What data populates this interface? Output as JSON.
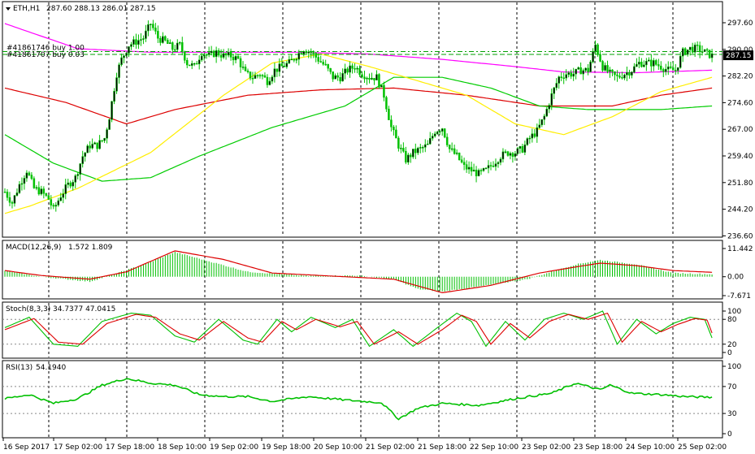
{
  "chart_data": [
    {
      "type": "candlestick",
      "title": "ETH,H1",
      "ohlc_label": "287.60 288.13 286.01 287.15",
      "ylim": [
        236.6,
        301.0
      ],
      "y_ticks": [
        "297.60",
        "290.00",
        "282.20",
        "274.60",
        "267.00",
        "259.40",
        "251.80",
        "244.20",
        "236.60"
      ],
      "current_price": "287.15",
      "orders": [
        {
          "label": "#41861746 buy 1.00",
          "price": 288.2
        },
        {
          "label": "#41861707 buy 0.03",
          "price": 287.4
        }
      ],
      "x_tick_labels": [
        "16 Sep 2017",
        "17 Sep 02:00",
        "17 Sep 18:00",
        "18 Sep 10:00",
        "19 Sep 02:00",
        "19 Sep 18:00",
        "20 Sep 10:00",
        "21 Sep 02:00",
        "21 Sep 18:00",
        "22 Sep 10:00",
        "23 Sep 02:00",
        "23 Sep 18:00",
        "24 Sep 10:00",
        "25 Sep 02:00"
      ],
      "close_anchors": [
        [
          0,
          249
        ],
        [
          3,
          246
        ],
        [
          6,
          251
        ],
        [
          9,
          255
        ],
        [
          12,
          250
        ],
        [
          15,
          249
        ],
        [
          18,
          247
        ],
        [
          20,
          244
        ],
        [
          23,
          248
        ],
        [
          26,
          251
        ],
        [
          29,
          253
        ],
        [
          32,
          259
        ],
        [
          35,
          262
        ],
        [
          38,
          262
        ],
        [
          41,
          264
        ],
        [
          43,
          270
        ],
        [
          46,
          282
        ],
        [
          48,
          286
        ],
        [
          51,
          290
        ],
        [
          54,
          291
        ],
        [
          57,
          292
        ],
        [
          60,
          296
        ],
        [
          63,
          292
        ],
        [
          66,
          291
        ],
        [
          69,
          289
        ],
        [
          72,
          290
        ],
        [
          75,
          285
        ],
        [
          78,
          284
        ],
        [
          81,
          288
        ],
        [
          84,
          287
        ],
        [
          87,
          288
        ],
        [
          90,
          287
        ],
        [
          93,
          287
        ],
        [
          96,
          286
        ],
        [
          99,
          282
        ],
        [
          102,
          281
        ],
        [
          105,
          282
        ],
        [
          108,
          280
        ],
        [
          111,
          283
        ],
        [
          114,
          284
        ],
        [
          117,
          285
        ],
        [
          120,
          287
        ],
        [
          123,
          289
        ],
        [
          126,
          288
        ],
        [
          129,
          286
        ],
        [
          132,
          284
        ],
        [
          135,
          281
        ],
        [
          138,
          281
        ],
        [
          141,
          283
        ],
        [
          144,
          284
        ],
        [
          147,
          282
        ],
        [
          150,
          281
        ],
        [
          153,
          281
        ],
        [
          156,
          276
        ],
        [
          159,
          267
        ],
        [
          162,
          262
        ],
        [
          165,
          258
        ],
        [
          168,
          260
        ],
        [
          171,
          261
        ],
        [
          174,
          262
        ],
        [
          177,
          266
        ],
        [
          180,
          267
        ],
        [
          183,
          261
        ],
        [
          186,
          259
        ],
        [
          189,
          256
        ],
        [
          192,
          255
        ],
        [
          195,
          254
        ],
        [
          198,
          255
        ],
        [
          201,
          257
        ],
        [
          204,
          259
        ],
        [
          207,
          260
        ],
        [
          210,
          260
        ],
        [
          213,
          261
        ],
        [
          216,
          264
        ],
        [
          219,
          266
        ],
        [
          222,
          270
        ],
        [
          225,
          276
        ],
        [
          228,
          281
        ],
        [
          231,
          282
        ],
        [
          234,
          282
        ],
        [
          237,
          283
        ],
        [
          240,
          283
        ],
        [
          243,
          290
        ],
        [
          246,
          284
        ],
        [
          249,
          282
        ],
        [
          252,
          281
        ],
        [
          255,
          282
        ],
        [
          258,
          283
        ],
        [
          261,
          285
        ],
        [
          264,
          285
        ],
        [
          267,
          285
        ],
        [
          270,
          284
        ],
        [
          273,
          283
        ],
        [
          276,
          283
        ],
        [
          279,
          288
        ],
        [
          282,
          289
        ],
        [
          285,
          289
        ],
        [
          288,
          288
        ],
        [
          291,
          287
        ]
      ],
      "moving_averages": [
        {
          "name": "MA-magenta",
          "color": "#ff00ff",
          "anchors": [
            [
              0,
              296
            ],
            [
              30,
              289
            ],
            [
              60,
              288
            ],
            [
              90,
              288
            ],
            [
              120,
              288
            ],
            [
              150,
              287.5
            ],
            [
              180,
              286
            ],
            [
              210,
              284
            ],
            [
              230,
              282.5
            ],
            [
              260,
              282.3
            ],
            [
              291,
              283
            ]
          ]
        },
        {
          "name": "MA-red",
          "color": "#dd0000",
          "anchors": [
            [
              0,
              278
            ],
            [
              25,
              274
            ],
            [
              50,
              268
            ],
            [
              70,
              272
            ],
            [
              100,
              276
            ],
            [
              130,
              277.5
            ],
            [
              160,
              278
            ],
            [
              190,
              276
            ],
            [
              220,
              273
            ],
            [
              250,
              273
            ],
            [
              270,
              276
            ],
            [
              291,
              278
            ]
          ]
        },
        {
          "name": "MA-green",
          "color": "#00cc00",
          "anchors": [
            [
              0,
              265
            ],
            [
              20,
              257
            ],
            [
              40,
              252
            ],
            [
              60,
              253
            ],
            [
              80,
              259
            ],
            [
              110,
              267
            ],
            [
              140,
              273
            ],
            [
              160,
              281
            ],
            [
              180,
              281
            ],
            [
              200,
              278
            ],
            [
              220,
              273
            ],
            [
              240,
              272
            ],
            [
              270,
              272
            ],
            [
              291,
              273
            ]
          ]
        },
        {
          "name": "MA-yellow",
          "color": "#ffee00",
          "anchors": [
            [
              0,
              243
            ],
            [
              10,
              245
            ],
            [
              30,
              250
            ],
            [
              60,
              260
            ],
            [
              90,
              276
            ],
            [
              110,
              285
            ],
            [
              130,
              287.5
            ],
            [
              150,
              284
            ],
            [
              170,
              280
            ],
            [
              190,
              276
            ],
            [
              210,
              268
            ],
            [
              230,
              265
            ],
            [
              250,
              270
            ],
            [
              270,
              277
            ],
            [
              291,
              281
            ]
          ]
        }
      ]
    },
    {
      "type": "macd",
      "label": "MACD(12,26,9)",
      "values_label": "1.572 1.809",
      "ylim": [
        -7.671,
        11.442
      ],
      "y_ticks": [
        "11.442",
        "0.00",
        "-7.671"
      ],
      "hist_anchors": [
        [
          0,
          2.5
        ],
        [
          15,
          0
        ],
        [
          35,
          -2
        ],
        [
          45,
          1
        ],
        [
          60,
          6
        ],
        [
          70,
          10
        ],
        [
          85,
          6
        ],
        [
          100,
          2
        ],
        [
          125,
          0.3
        ],
        [
          145,
          0.5
        ],
        [
          160,
          -1
        ],
        [
          170,
          -5
        ],
        [
          180,
          -6
        ],
        [
          195,
          -4
        ],
        [
          215,
          -1
        ],
        [
          235,
          5
        ],
        [
          245,
          6.8
        ],
        [
          260,
          5
        ],
        [
          275,
          1.5
        ],
        [
          291,
          1
        ]
      ],
      "signal_anchors": [
        [
          0,
          2.5
        ],
        [
          15,
          0.5
        ],
        [
          35,
          -1
        ],
        [
          50,
          2
        ],
        [
          70,
          10.5
        ],
        [
          90,
          7
        ],
        [
          110,
          1.5
        ],
        [
          130,
          0.5
        ],
        [
          160,
          -1
        ],
        [
          180,
          -6.5
        ],
        [
          200,
          -3.5
        ],
        [
          220,
          1.5
        ],
        [
          235,
          4
        ],
        [
          245,
          5.5
        ],
        [
          260,
          4.5
        ],
        [
          275,
          2.5
        ],
        [
          291,
          1.8
        ]
      ]
    },
    {
      "type": "stochastic",
      "label": "Stoch(8,3,3)",
      "values_label": "34.7377 47.0415",
      "ylim": [
        0,
        100
      ],
      "y_ticks": [
        "100",
        "80",
        "20",
        "0"
      ],
      "k_anchors": [
        [
          0,
          60
        ],
        [
          10,
          85
        ],
        [
          20,
          20
        ],
        [
          30,
          15
        ],
        [
          40,
          75
        ],
        [
          52,
          95
        ],
        [
          60,
          90
        ],
        [
          70,
          40
        ],
        [
          78,
          25
        ],
        [
          88,
          80
        ],
        [
          98,
          30
        ],
        [
          104,
          20
        ],
        [
          112,
          80
        ],
        [
          118,
          50
        ],
        [
          126,
          85
        ],
        [
          136,
          60
        ],
        [
          143,
          80
        ],
        [
          150,
          15
        ],
        [
          160,
          55
        ],
        [
          168,
          15
        ],
        [
          178,
          60
        ],
        [
          186,
          95
        ],
        [
          192,
          75
        ],
        [
          198,
          15
        ],
        [
          206,
          75
        ],
        [
          214,
          30
        ],
        [
          222,
          80
        ],
        [
          230,
          95
        ],
        [
          238,
          80
        ],
        [
          246,
          100
        ],
        [
          252,
          20
        ],
        [
          260,
          80
        ],
        [
          268,
          45
        ],
        [
          275,
          70
        ],
        [
          282,
          85
        ],
        [
          288,
          80
        ],
        [
          291,
          35
        ]
      ],
      "d_anchors": [
        [
          0,
          55
        ],
        [
          12,
          82
        ],
        [
          22,
          25
        ],
        [
          32,
          20
        ],
        [
          42,
          70
        ],
        [
          54,
          92
        ],
        [
          62,
          85
        ],
        [
          72,
          45
        ],
        [
          80,
          30
        ],
        [
          90,
          75
        ],
        [
          100,
          35
        ],
        [
          106,
          25
        ],
        [
          114,
          75
        ],
        [
          120,
          55
        ],
        [
          128,
          80
        ],
        [
          138,
          62
        ],
        [
          145,
          75
        ],
        [
          152,
          20
        ],
        [
          162,
          50
        ],
        [
          170,
          20
        ],
        [
          180,
          55
        ],
        [
          188,
          90
        ],
        [
          194,
          75
        ],
        [
          200,
          20
        ],
        [
          208,
          70
        ],
        [
          216,
          35
        ],
        [
          224,
          75
        ],
        [
          232,
          92
        ],
        [
          240,
          80
        ],
        [
          248,
          95
        ],
        [
          254,
          25
        ],
        [
          262,
          75
        ],
        [
          270,
          50
        ],
        [
          277,
          68
        ],
        [
          284,
          82
        ],
        [
          289,
          78
        ],
        [
          291,
          47
        ]
      ]
    },
    {
      "type": "rsi",
      "label": "RSI(13)",
      "values_label": "54.1940",
      "ylim": [
        0,
        100
      ],
      "y_ticks": [
        "100",
        "70",
        "30",
        "0"
      ],
      "anchors": [
        [
          0,
          52
        ],
        [
          10,
          58
        ],
        [
          20,
          45
        ],
        [
          30,
          52
        ],
        [
          40,
          72
        ],
        [
          50,
          82
        ],
        [
          60,
          75
        ],
        [
          70,
          72
        ],
        [
          80,
          58
        ],
        [
          90,
          55
        ],
        [
          100,
          55
        ],
        [
          110,
          48
        ],
        [
          125,
          55
        ],
        [
          140,
          50
        ],
        [
          155,
          46
        ],
        [
          162,
          22
        ],
        [
          170,
          38
        ],
        [
          180,
          45
        ],
        [
          195,
          42
        ],
        [
          210,
          52
        ],
        [
          225,
          60
        ],
        [
          235,
          75
        ],
        [
          245,
          65
        ],
        [
          249,
          72
        ],
        [
          258,
          60
        ],
        [
          270,
          58
        ],
        [
          280,
          55
        ],
        [
          291,
          54
        ]
      ]
    }
  ]
}
